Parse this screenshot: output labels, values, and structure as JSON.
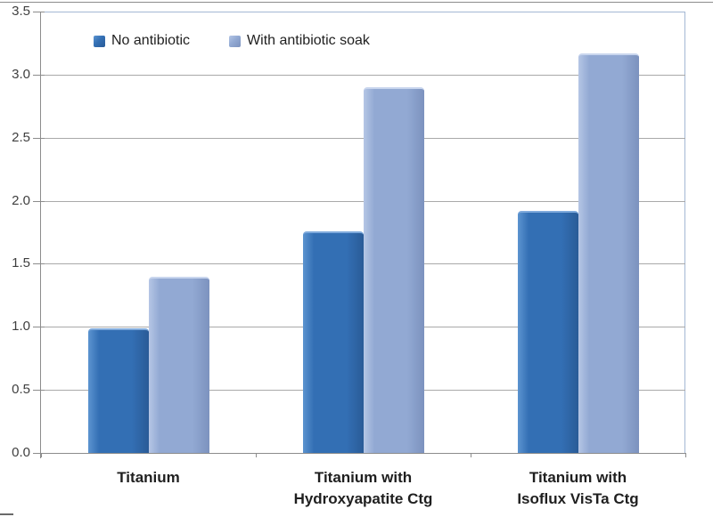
{
  "chart_data": {
    "type": "bar",
    "title": "",
    "categories": [
      "Titanium",
      "Titanium with\nHydroxyapatite Ctg",
      "Titanium with\nIsoflux VisTa Ctg"
    ],
    "series": [
      {
        "name": "No antibiotic",
        "values": [
          0.99,
          1.76,
          1.92
        ],
        "color": "#336FB4",
        "color_light": "#5C94D0",
        "color_dark": "#2A5B97",
        "highlight": "#7FAADC"
      },
      {
        "name": "With antibiotic soak",
        "values": [
          1.4,
          2.9,
          3.17
        ],
        "color": "#92A9D3",
        "color_light": "#B5C6E5",
        "color_dark": "#7C92BE",
        "highlight": "#C9D6EE"
      }
    ],
    "xlabel": "",
    "ylabel": "",
    "ylim": [
      0,
      3.5
    ],
    "y_ticks": [
      {
        "value": 0.0,
        "label": "0.0"
      },
      {
        "value": 0.5,
        "label": "0.5"
      },
      {
        "value": 1.0,
        "label": "1.0"
      },
      {
        "value": 1.5,
        "label": "1.5"
      },
      {
        "value": 2.0,
        "label": "2.0"
      },
      {
        "value": 2.5,
        "label": "2.5"
      },
      {
        "value": 3.0,
        "label": "3.0"
      },
      {
        "value": 3.5,
        "label": "3.5"
      }
    ],
    "grid": true,
    "legend_position": "top-left-inside"
  },
  "colors": {
    "gridline": "#A9A9A9",
    "axis": "#8C8C8C",
    "plot_border": "#A4B8D4",
    "label_text": "#1F1F1F",
    "tick_text": "#3F3F3F",
    "background": "#FFFFFF"
  }
}
